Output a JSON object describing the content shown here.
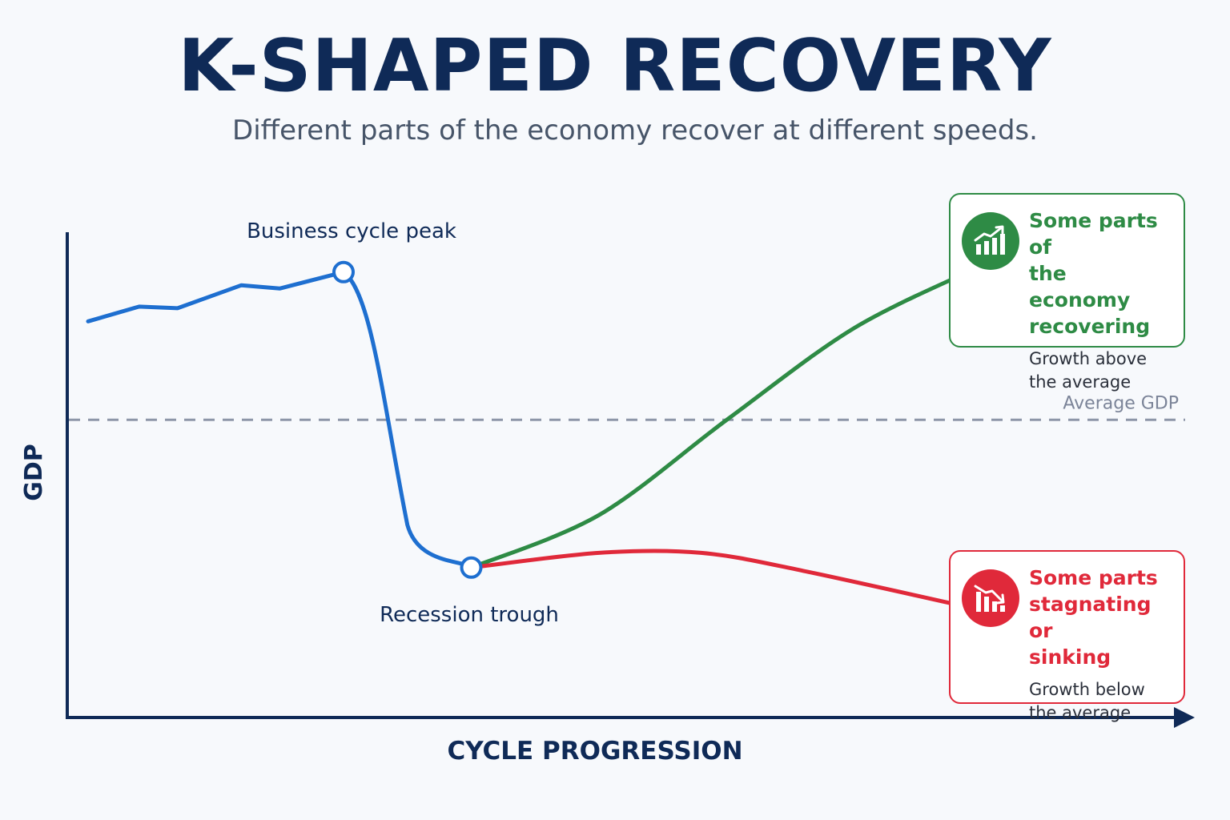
{
  "title": "K-SHAPED RECOVERY",
  "subtitle": "Different parts of the economy recover at different speeds.",
  "colors": {
    "navy": "#0f2a57",
    "blue": "#1e6fd0",
    "green": "#2e8b45",
    "red": "#e0293a",
    "average": "#8d96a8"
  },
  "chart_data": {
    "type": "line",
    "xlabel": "CYCLE PROGRESSION",
    "ylabel": "GDP",
    "grid": false,
    "reference_line": {
      "label": "Average GDP",
      "value": 47
    },
    "series": [
      {
        "key": "pre_recession",
        "color": "#1e6fd0",
        "x": [
          0,
          1,
          1.75,
          3,
          3.75,
          5,
          6.25,
          7.5
        ],
        "y": [
          77,
          81.5,
          81,
          88,
          87,
          92,
          15,
          2
        ]
      },
      {
        "key": "upper_branch",
        "color": "#2e8b45",
        "x": [
          7.5,
          10,
          12.5,
          15,
          17.5
        ],
        "y": [
          2,
          18,
          47,
          75,
          94
        ]
      },
      {
        "key": "lower_branch",
        "color": "#e0293a",
        "x": [
          7.5,
          10,
          12,
          14,
          17.5
        ],
        "y": [
          2,
          6.5,
          6.5,
          1,
          -11
        ]
      }
    ],
    "annotations": [
      {
        "text": "Business cycle peak",
        "x": 5,
        "y": 92
      },
      {
        "text": "Recession trough",
        "x": 7.5,
        "y": 2
      }
    ]
  },
  "callouts": {
    "up": {
      "icon": "chart-up-icon",
      "title": "Some parts of\nthe economy\nrecovering",
      "desc": "Growth above\nthe average"
    },
    "down": {
      "icon": "chart-down-icon",
      "title": "Some parts\nstagnating or\nsinking",
      "desc": "Growth below\nthe average"
    }
  }
}
